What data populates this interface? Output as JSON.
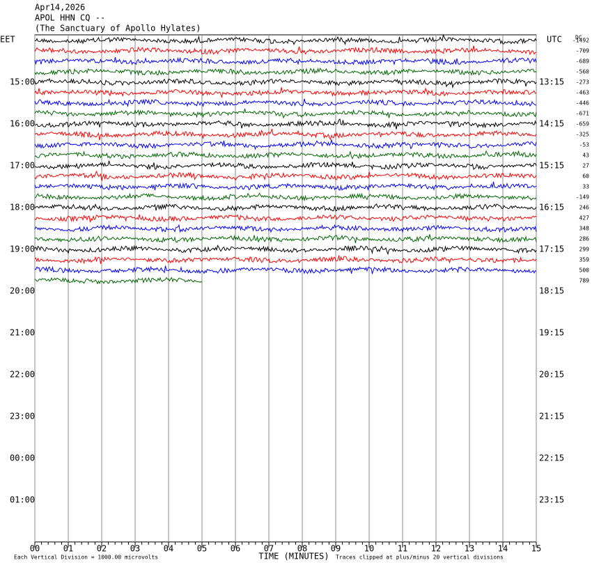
{
  "chart_data": {
    "type": "helicorder",
    "title": [
      "Apr14,2026",
      "APOL HHN CQ --",
      "(The Sanctuary of Apollo Hylates)"
    ],
    "left_axis_label": "EET",
    "right_axis_label": "UTC",
    "dc_label": "DC",
    "left_labels": [
      "15:00",
      "16:00",
      "17:00",
      "18:00",
      "19:00",
      "20:00",
      "21:00",
      "22:00",
      "23:00",
      "00:00",
      "01:00"
    ],
    "right_labels": [
      "13:15",
      "14:15",
      "15:15",
      "16:15",
      "17:15",
      "18:15",
      "19:15",
      "20:15",
      "21:15",
      "22:15",
      "23:15"
    ],
    "dc_offsets": [
      -1492,
      -709,
      -689,
      -560,
      -273,
      -463,
      -446,
      -671,
      -659,
      -325,
      -53,
      43,
      27,
      60,
      33,
      -149,
      246,
      427,
      348,
      286,
      299,
      359,
      500,
      789
    ],
    "trace_colors": [
      "#000000",
      "#ff0000",
      "#0000ff",
      "#006600"
    ],
    "last_trace_end": 5,
    "xlim": [
      0,
      15
    ],
    "xticks": [
      {
        "value": 0,
        "label": "00"
      },
      {
        "value": 1,
        "label": "01"
      },
      {
        "value": 2,
        "label": "02"
      },
      {
        "value": 3,
        "label": "03"
      },
      {
        "value": 4,
        "label": "04"
      },
      {
        "value": 5,
        "label": "05"
      },
      {
        "value": 6,
        "label": "06"
      },
      {
        "value": 7,
        "label": "07"
      },
      {
        "value": 8,
        "label": "08"
      },
      {
        "value": 9,
        "label": "09"
      },
      10,
      11,
      12,
      13,
      14,
      15
    ],
    "xlabel": "TIME (MINUTES)",
    "scale_note": "Each Vertical Division = 1000.00 microvolts",
    "clip_note": "Traces clipped at plus/minus 20 vertical divisions"
  }
}
